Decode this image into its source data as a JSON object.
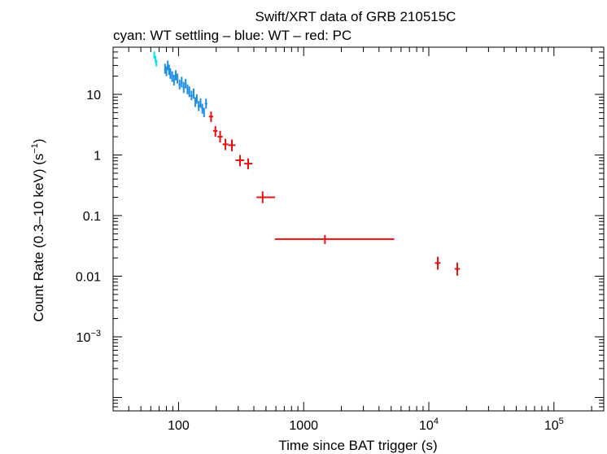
{
  "chart_data": {
    "type": "scatter",
    "title": "Swift/XRT data of GRB 210515C",
    "subtitle": "cyan: WT settling – blue: WT – red: PC",
    "xlabel": "Time since BAT trigger (s)",
    "ylabel_parts": {
      "main": "Count Rate (0.3–10 keV) (s",
      "sup": "−1",
      "close": ")"
    },
    "xscale": "log",
    "yscale": "log",
    "xlim": [
      30,
      250000
    ],
    "ylim": [
      6e-05,
      60
    ],
    "grid": false,
    "x_ticks": [
      {
        "value": 100,
        "label": "100"
      },
      {
        "value": 1000,
        "label": "1000"
      },
      {
        "value": 10000,
        "base": "10",
        "exp": "4"
      },
      {
        "value": 100000,
        "base": "10",
        "exp": "5"
      }
    ],
    "y_ticks": [
      {
        "value": 10,
        "label": "10"
      },
      {
        "value": 1,
        "label": "1"
      },
      {
        "value": 0.1,
        "label": "0.1"
      },
      {
        "value": 0.01,
        "label": "0.01"
      },
      {
        "value": 0.001,
        "base": "10",
        "exp": "−3"
      }
    ],
    "colors": {
      "wt_settling": "#00e5ee",
      "wt": "#1e8fe6",
      "pc": "#e8100f",
      "axis": "#000000"
    },
    "series": [
      {
        "name": "WT settling",
        "color_key": "wt_settling",
        "points": [
          {
            "x": 64,
            "xlo": 63,
            "xhi": 65,
            "y": 45,
            "ylo": 39,
            "yhi": 51
          },
          {
            "x": 65.5,
            "xlo": 65,
            "xhi": 66,
            "y": 38,
            "ylo": 33,
            "yhi": 43
          },
          {
            "x": 66.5,
            "xlo": 66,
            "xhi": 67,
            "y": 33,
            "ylo": 29,
            "yhi": 37
          }
        ]
      },
      {
        "name": "WT",
        "color_key": "wt",
        "points": [
          {
            "x": 78,
            "xlo": 77,
            "xhi": 79,
            "y": 27,
            "ylo": 22,
            "yhi": 32
          },
          {
            "x": 80,
            "xlo": 79,
            "xhi": 81,
            "y": 24,
            "ylo": 20,
            "yhi": 29
          },
          {
            "x": 82,
            "xlo": 81,
            "xhi": 83,
            "y": 30,
            "ylo": 25,
            "yhi": 36
          },
          {
            "x": 84,
            "xlo": 83,
            "xhi": 85,
            "y": 26,
            "ylo": 21,
            "yhi": 31
          },
          {
            "x": 86,
            "xlo": 85,
            "xhi": 87,
            "y": 22,
            "ylo": 18,
            "yhi": 27
          },
          {
            "x": 89,
            "xlo": 87.5,
            "xhi": 90.5,
            "y": 20,
            "ylo": 16,
            "yhi": 24
          },
          {
            "x": 92,
            "xlo": 90.5,
            "xhi": 93.5,
            "y": 17,
            "ylo": 14,
            "yhi": 21
          },
          {
            "x": 95,
            "xlo": 93.5,
            "xhi": 96.5,
            "y": 21,
            "ylo": 17,
            "yhi": 25
          },
          {
            "x": 98,
            "xlo": 96.5,
            "xhi": 99.5,
            "y": 18,
            "ylo": 15,
            "yhi": 22
          },
          {
            "x": 102,
            "xlo": 100,
            "xhi": 104,
            "y": 14.5,
            "ylo": 12,
            "yhi": 17.5
          },
          {
            "x": 106,
            "xlo": 104,
            "xhi": 108,
            "y": 16,
            "ylo": 13,
            "yhi": 19.5
          },
          {
            "x": 110,
            "xlo": 108,
            "xhi": 112,
            "y": 13,
            "ylo": 10.5,
            "yhi": 16
          },
          {
            "x": 114,
            "xlo": 112,
            "xhi": 116,
            "y": 15,
            "ylo": 12.5,
            "yhi": 18
          },
          {
            "x": 118,
            "xlo": 116,
            "xhi": 120,
            "y": 12,
            "ylo": 10,
            "yhi": 14.5
          },
          {
            "x": 122,
            "xlo": 120,
            "xhi": 124,
            "y": 11,
            "ylo": 9,
            "yhi": 13.5
          },
          {
            "x": 127,
            "xlo": 124,
            "xhi": 130,
            "y": 9.5,
            "ylo": 8,
            "yhi": 11.5
          },
          {
            "x": 132,
            "xlo": 130,
            "xhi": 134,
            "y": 10.5,
            "ylo": 8.5,
            "yhi": 12.5
          },
          {
            "x": 136,
            "xlo": 134,
            "xhi": 138,
            "y": 7.5,
            "ylo": 6.2,
            "yhi": 9
          },
          {
            "x": 140,
            "xlo": 138,
            "xhi": 142,
            "y": 8.5,
            "ylo": 7,
            "yhi": 10
          },
          {
            "x": 145,
            "xlo": 142,
            "xhi": 148,
            "y": 6.5,
            "ylo": 5.3,
            "yhi": 7.8
          },
          {
            "x": 150,
            "xlo": 148,
            "xhi": 152,
            "y": 7.2,
            "ylo": 6,
            "yhi": 8.6
          },
          {
            "x": 155,
            "xlo": 152,
            "xhi": 158,
            "y": 5.8,
            "ylo": 4.8,
            "yhi": 7
          },
          {
            "x": 160,
            "xlo": 158,
            "xhi": 162,
            "y": 5,
            "ylo": 4.2,
            "yhi": 6
          },
          {
            "x": 166,
            "xlo": 162,
            "xhi": 170,
            "y": 7,
            "ylo": 5.8,
            "yhi": 8.5
          }
        ]
      },
      {
        "name": "PC",
        "color_key": "pc",
        "points": [
          {
            "x": 182,
            "xlo": 175,
            "xhi": 189,
            "y": 4.3,
            "ylo": 3.5,
            "yhi": 5.2
          },
          {
            "x": 197,
            "xlo": 189,
            "xhi": 205,
            "y": 2.5,
            "ylo": 2.0,
            "yhi": 3.0
          },
          {
            "x": 215,
            "xlo": 205,
            "xhi": 225,
            "y": 2.0,
            "ylo": 1.6,
            "yhi": 2.5
          },
          {
            "x": 237,
            "xlo": 225,
            "xhi": 250,
            "y": 1.5,
            "ylo": 1.2,
            "yhi": 1.85
          },
          {
            "x": 267,
            "xlo": 250,
            "xhi": 285,
            "y": 1.45,
            "ylo": 1.15,
            "yhi": 1.8
          },
          {
            "x": 310,
            "xlo": 285,
            "xhi": 335,
            "y": 0.82,
            "ylo": 0.65,
            "yhi": 1.0
          },
          {
            "x": 360,
            "xlo": 335,
            "xhi": 390,
            "y": 0.72,
            "ylo": 0.58,
            "yhi": 0.88
          },
          {
            "x": 470,
            "xlo": 420,
            "xhi": 590,
            "y": 0.2,
            "ylo": 0.16,
            "yhi": 0.25
          },
          {
            "x": 1480,
            "xlo": 590,
            "xhi": 5300,
            "y": 0.041,
            "ylo": 0.034,
            "yhi": 0.048
          },
          {
            "x": 11800,
            "xlo": 11200,
            "xhi": 12400,
            "y": 0.0165,
            "ylo": 0.0128,
            "yhi": 0.021
          },
          {
            "x": 16900,
            "xlo": 16100,
            "xhi": 17700,
            "y": 0.0132,
            "ylo": 0.0102,
            "yhi": 0.0168
          }
        ]
      }
    ]
  }
}
